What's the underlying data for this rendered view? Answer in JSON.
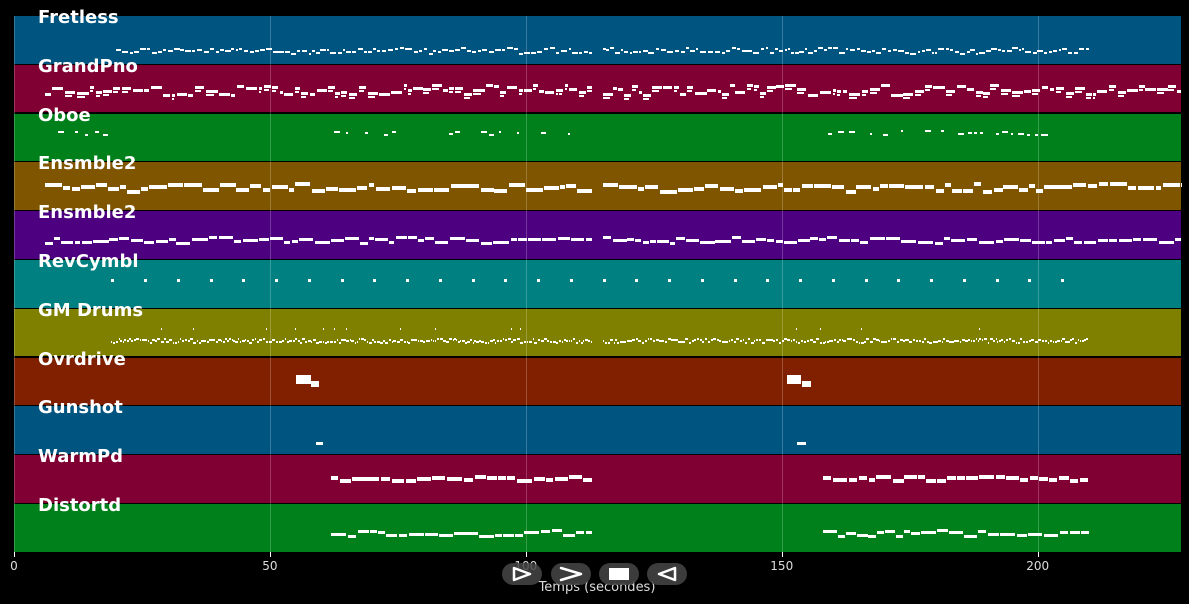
{
  "tracks": [
    {
      "name": "Fretless",
      "color": "#005580"
    },
    {
      "name": "GrandPno",
      "color": "#800033"
    },
    {
      "name": "Oboe",
      "color": "#00801a"
    },
    {
      "name": "Ensmble2",
      "color": "#805500"
    },
    {
      "name": "Ensmble2",
      "color": "#4d0080"
    },
    {
      "name": "RevCymbl",
      "color": "#008080"
    },
    {
      "name": "GM Drums",
      "color": "#808000"
    },
    {
      "name": "Ovrdrive",
      "color": "#802000"
    },
    {
      "name": "Gunshot",
      "color": "#005580"
    },
    {
      "name": "WarmPd",
      "color": "#800033"
    },
    {
      "name": "Distortd",
      "color": "#00801a"
    }
  ],
  "axis": {
    "xmin": 0,
    "xmax": 228,
    "ticks": [
      0,
      50,
      100,
      150,
      200
    ],
    "xlabel": "Temps (secondes)"
  },
  "controls": [
    {
      "name": "play-icon"
    },
    {
      "name": "forward-icon"
    },
    {
      "name": "stop-icon"
    },
    {
      "name": "rewind-icon"
    }
  ]
}
